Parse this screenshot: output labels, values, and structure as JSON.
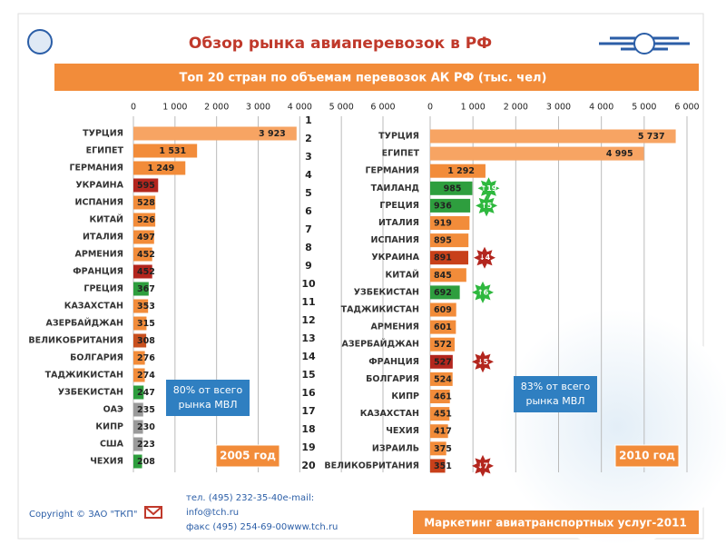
{
  "header": {
    "title": "Обзор рынка авиаперевозок в РФ",
    "subtitle": "Топ 20 стран по объемам перевозок АК РФ (тыс. чел)"
  },
  "ranks": [
    1,
    2,
    3,
    4,
    5,
    6,
    7,
    8,
    9,
    10,
    11,
    12,
    13,
    14,
    15,
    16,
    17,
    18,
    19,
    20
  ],
  "chart_data": [
    {
      "type": "bar",
      "orientation": "horizontal",
      "categories": [
        "ТУРЦИЯ",
        "ЕГИПЕТ",
        "ГЕРМАНИЯ",
        "УКРАИНА",
        "ИСПАНИЯ",
        "КИТАЙ",
        "ИТАЛИЯ",
        "АРМЕНИЯ",
        "ФРАНЦИЯ",
        "ГРЕЦИЯ",
        "КАЗАХСТАН",
        "АЗЕРБАЙДЖАН",
        "ВЕЛИКОБРИТАНИЯ",
        "БОЛГАРИЯ",
        "ТАДЖИКИСТАН",
        "УЗБЕКИСТАН",
        "ОАЭ",
        "КИПР",
        "США",
        "ЧЕХИЯ"
      ],
      "values": [
        3923,
        1531,
        1249,
        595,
        528,
        526,
        497,
        452,
        452,
        367,
        353,
        315,
        308,
        276,
        274,
        247,
        235,
        230,
        223,
        208
      ],
      "value_labels": [
        "3 923",
        "1 531",
        "1 249",
        "595",
        "528",
        "526",
        "497",
        "452",
        "452",
        "367",
        "353",
        "315",
        "308",
        "276",
        "274",
        "247",
        "235",
        "230",
        "223",
        "208"
      ],
      "colors": [
        "#f7a463",
        "#f28c3a",
        "#f28c3a",
        "#b3261e",
        "#f28c3a",
        "#f28c3a",
        "#f28c3a",
        "#f28c3a",
        "#b3261e",
        "#2e9e3e",
        "#f28c3a",
        "#f28c3a",
        "#c8501f",
        "#f28c3a",
        "#f28c3a",
        "#2e9e3e",
        "#9a9a9a",
        "#9a9a9a",
        "#9a9a9a",
        "#2e9e3e"
      ],
      "xlim": [
        0,
        6000
      ],
      "xticks": [
        0,
        {
          "value": 1000,
          "label": "1 000"
        },
        {
          "value": 2000,
          "label": "2 000"
        },
        {
          "value": 3000,
          "label": "3 000"
        },
        {
          "value": 4000,
          "label": "4 000"
        },
        {
          "value": 5000,
          "label": "5 000"
        },
        {
          "value": 6000,
          "label": "6 000"
        }
      ],
      "grid": true,
      "note": [
        "80% от всего",
        "рынка МВЛ"
      ],
      "period": "2005 год"
    },
    {
      "type": "bar",
      "orientation": "horizontal",
      "categories": [
        "ТУРЦИЯ",
        "ЕГИПЕТ",
        "ГЕРМАНИЯ",
        "ТАИЛАНД",
        "ГРЕЦИЯ",
        "ИТАЛИЯ",
        "ИСПАНИЯ",
        "УКРАИНА",
        "КИТАЙ",
        "УЗБЕКИСТАН",
        "ТАДЖИКИСТАН",
        "АРМЕНИЯ",
        "АЗЕРБАЙДЖАН",
        "ФРАНЦИЯ",
        "БОЛГАРИЯ",
        "КИПР",
        "КАЗАХСТАН",
        "ЧЕХИЯ",
        "ИЗРАИЛЬ",
        "ВЕЛИКОБРИТАНИЯ"
      ],
      "values": [
        5737,
        4995,
        1292,
        985,
        936,
        919,
        895,
        891,
        845,
        692,
        609,
        601,
        572,
        527,
        524,
        461,
        451,
        417,
        375,
        351
      ],
      "value_labels": [
        "5 737",
        "4 995",
        "1 292",
        "985",
        "936",
        "919",
        "895",
        "891",
        "845",
        "692",
        "609",
        "601",
        "572",
        "527",
        "524",
        "461",
        "451",
        "417",
        "375",
        "351"
      ],
      "colors": [
        "#f7a463",
        "#f7a463",
        "#f28c3a",
        "#2e9e3e",
        "#2e9e3e",
        "#f28c3a",
        "#f28c3a",
        "#c8401a",
        "#f28c3a",
        "#2e9e3e",
        "#f28c3a",
        "#f28c3a",
        "#f28c3a",
        "#b3261e",
        "#f28c3a",
        "#f28c3a",
        "#f28c3a",
        "#f28c3a",
        "#f28c3a",
        "#c8401a"
      ],
      "badges": [
        null,
        null,
        null,
        {
          "label": "↑19",
          "color": "#2eb83e"
        },
        {
          "label": "↑5",
          "color": "#2eb83e"
        },
        null,
        null,
        {
          "label": "↓4",
          "color": "#b3261e"
        },
        null,
        {
          "label": "↑6",
          "color": "#2eb83e"
        },
        null,
        null,
        null,
        {
          "label": "↓5",
          "color": "#b3261e"
        },
        null,
        null,
        null,
        null,
        null,
        {
          "label": "↓7",
          "color": "#b3261e"
        }
      ],
      "xlim": [
        0,
        6000
      ],
      "xticks": [
        0,
        {
          "value": 1000,
          "label": "1 000"
        },
        {
          "value": 2000,
          "label": "2 000"
        },
        {
          "value": 3000,
          "label": "3 000"
        },
        {
          "value": 4000,
          "label": "4 000"
        },
        {
          "value": 5000,
          "label": "5 000"
        },
        {
          "value": 6000,
          "label": "6 000"
        }
      ],
      "grid": true,
      "note": [
        "83% от всего",
        "рынка МВЛ"
      ],
      "period": "2010 год"
    }
  ],
  "footer": {
    "copyright": "Copyright © ЗАО \"ТКП\"",
    "contacts": [
      "тел.  (495) 232-35-40e-mail:",
      "info@tch.ru",
      "факс (495) 254-69-00www.tch.ru"
    ],
    "tagline": "Маркетинг авиатранспортных услуг-2011"
  }
}
